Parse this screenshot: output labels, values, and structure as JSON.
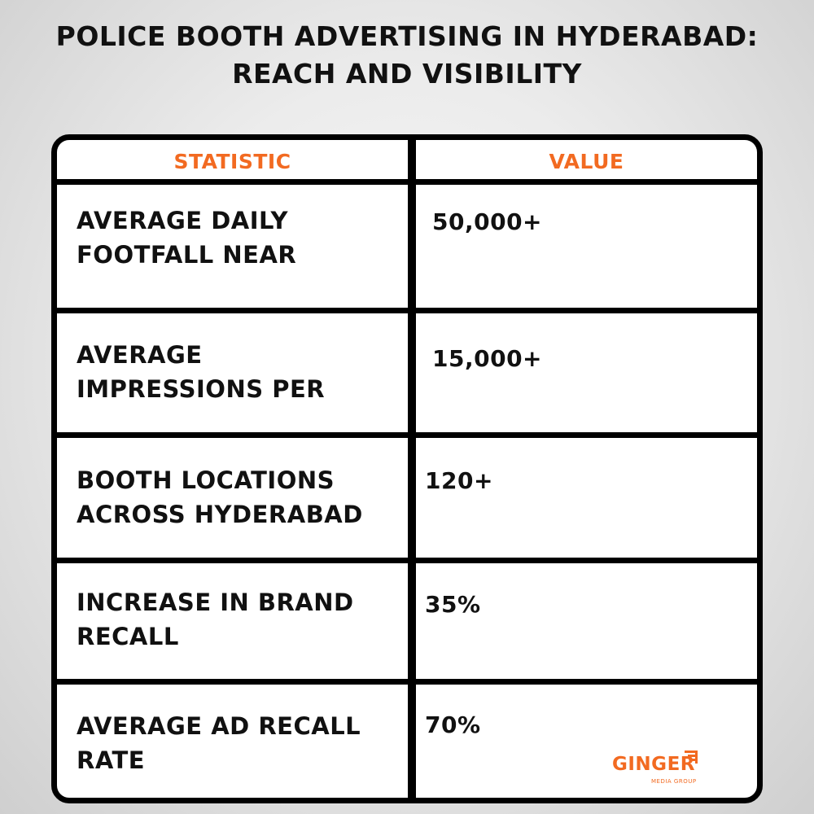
{
  "title": {
    "line1": "POLICE BOOTH ADVERTISING IN HYDERABAD:",
    "line2": "REACH AND VISIBILITY"
  },
  "table": {
    "headers": [
      "STATISTIC",
      "VALUE"
    ],
    "rows": [
      {
        "stat_line1": "AVERAGE DAILY",
        "stat_line2": "FOOTFALL NEAR",
        "value": "50,000+"
      },
      {
        "stat_line1": "AVERAGE",
        "stat_line2": "IMPRESSIONS PER",
        "value": "15,000+"
      },
      {
        "stat_line1": "BOOTH LOCATIONS",
        "stat_line2": "ACROSS HYDERABAD",
        "value": "120+"
      },
      {
        "stat_line1": "INCREASE IN BRAND",
        "stat_line2": "RECALL",
        "value": "35%"
      },
      {
        "stat_line1": "AVERAGE AD RECALL",
        "stat_line2": "RATE",
        "value": "70%"
      }
    ]
  },
  "logo": {
    "word": "GINGER",
    "subtitle": "MEDIA GROUP",
    "icon": "signal-bars-icon"
  },
  "colors": {
    "accent": "#f26a21",
    "border": "#000000",
    "text": "#111111"
  }
}
